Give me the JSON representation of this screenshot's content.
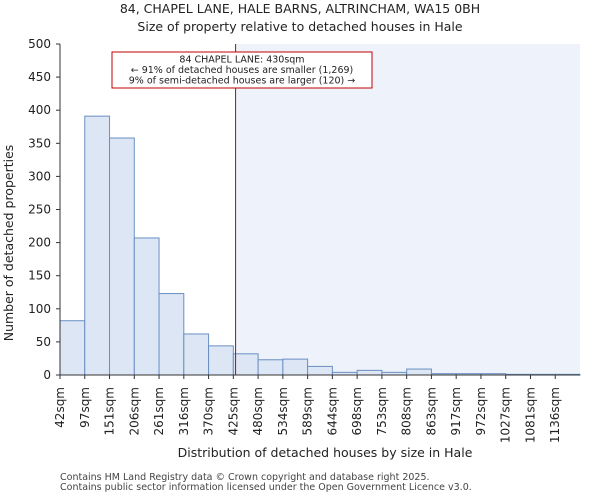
{
  "chart_data": {
    "type": "bar",
    "title": "84, CHAPEL LANE, HALE BARNS, ALTRINCHAM, WA15 0BH",
    "subtitle": "Size of property relative to detached houses in Hale",
    "xlabel": "Distribution of detached houses by size in Hale",
    "ylabel": "Number of detached properties",
    "ylim": [
      0,
      500
    ],
    "yticks": [
      0,
      50,
      100,
      150,
      200,
      250,
      300,
      350,
      400,
      450,
      500
    ],
    "bin_edges": [
      42,
      97,
      151,
      206,
      261,
      316,
      370,
      425,
      480,
      534,
      589,
      644,
      698,
      753,
      808,
      863,
      917,
      972,
      1027,
      1081,
      1136
    ],
    "categories": [
      "42sqm",
      "97sqm",
      "151sqm",
      "206sqm",
      "261sqm",
      "316sqm",
      "370sqm",
      "425sqm",
      "480sqm",
      "534sqm",
      "589sqm",
      "644sqm",
      "698sqm",
      "753sqm",
      "808sqm",
      "863sqm",
      "917sqm",
      "972sqm",
      "1027sqm",
      "1081sqm",
      "1136sqm"
    ],
    "values": [
      82,
      391,
      358,
      207,
      123,
      62,
      44,
      32,
      23,
      24,
      13,
      4,
      7,
      4,
      9,
      2,
      2,
      2,
      1,
      1,
      1
    ],
    "bar_color": "#dce6f5",
    "bar_edge": "#6a8fc2",
    "highlight_region_color": "#eef2fa",
    "marker": {
      "value": 430,
      "color": "#c00000",
      "lines": [
        "84 CHAPEL LANE: 430sqm",
        "← 91% of detached houses are smaller (1,269)",
        "9% of semi-detached houses are larger (120) →"
      ]
    }
  },
  "footer": {
    "line1": "Contains HM Land Registry data © Crown copyright and database right 2025.",
    "line2": "Contains public sector information licensed under the Open Government Licence v3.0."
  }
}
